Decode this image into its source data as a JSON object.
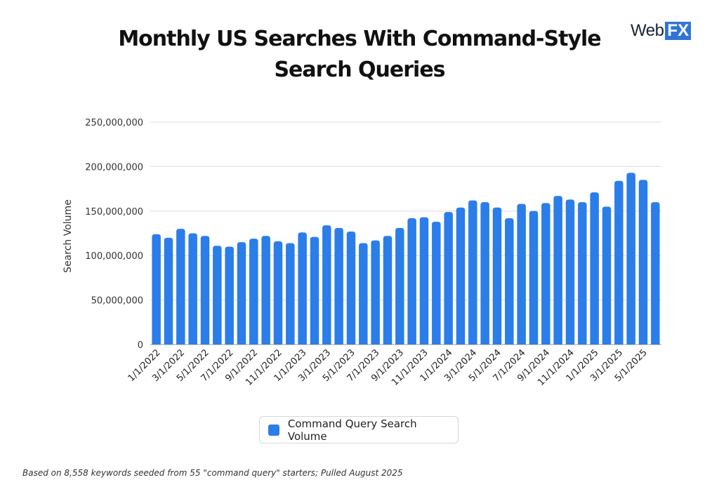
{
  "title_line1": "Monthly US Searches With Command-Style",
  "title_line2": "Search Queries",
  "logo": {
    "text_web": "Web",
    "text_fx": "FX"
  },
  "footnote": "Based on 8,558 keywords seeded from 55 \"command query\" starters; Pulled August 2025",
  "colors": {
    "bar": "#2b7de9",
    "grid": "#dcdcdc",
    "axis": "#555555"
  },
  "chart_data": {
    "type": "bar",
    "title": "Monthly US Searches With Command-Style Search Queries",
    "xlabel": "",
    "ylabel": "Search Volume",
    "ylim": [
      0,
      250000000
    ],
    "yticks": [
      0,
      50000000,
      100000000,
      150000000,
      200000000,
      250000000
    ],
    "ytick_labels": [
      "0",
      "50,000,000",
      "100,000,000",
      "150,000,000",
      "200,000,000",
      "250,000,000"
    ],
    "grid": true,
    "legend": "bottom-center",
    "categories": [
      "1/1/2022",
      "2/1/2022",
      "3/1/2022",
      "4/1/2022",
      "5/1/2022",
      "6/1/2022",
      "7/1/2022",
      "8/1/2022",
      "9/1/2022",
      "10/1/2022",
      "11/1/2022",
      "12/1/2022",
      "1/1/2023",
      "2/1/2023",
      "3/1/2023",
      "4/1/2023",
      "5/1/2023",
      "6/1/2023",
      "7/1/2023",
      "8/1/2023",
      "9/1/2023",
      "10/1/2023",
      "11/1/2023",
      "12/1/2023",
      "1/1/2024",
      "2/1/2024",
      "3/1/2024",
      "4/1/2024",
      "5/1/2024",
      "6/1/2024",
      "7/1/2024",
      "8/1/2024",
      "9/1/2024",
      "10/1/2024",
      "11/1/2024",
      "12/1/2024",
      "1/1/2025",
      "2/1/2025",
      "3/1/2025",
      "4/1/2025",
      "5/1/2025",
      "6/1/2025"
    ],
    "tick_labels_shown": [
      "1/1/2022",
      "3/1/2022",
      "5/1/2022",
      "7/1/2022",
      "9/1/2022",
      "11/1/2022",
      "1/1/2023",
      "3/1/2023",
      "5/1/2023",
      "7/1/2023",
      "9/1/2023",
      "11/1/2023",
      "1/1/2024",
      "3/1/2024",
      "5/1/2024",
      "7/1/2024",
      "9/1/2024",
      "11/1/2024",
      "1/1/2025",
      "3/1/2025",
      "5/1/2025"
    ],
    "series": [
      {
        "name": "Command Query Search Volume",
        "values": [
          124000000,
          120000000,
          130000000,
          125000000,
          122000000,
          111000000,
          110000000,
          115000000,
          119000000,
          122000000,
          116000000,
          114000000,
          126000000,
          121000000,
          134000000,
          131000000,
          127000000,
          114000000,
          117000000,
          122000000,
          131000000,
          142000000,
          143000000,
          138000000,
          149000000,
          154000000,
          162000000,
          160000000,
          154000000,
          142000000,
          158000000,
          150000000,
          159000000,
          167000000,
          163000000,
          160000000,
          171000000,
          155000000,
          184000000,
          193000000,
          185000000,
          160000000
        ]
      }
    ]
  }
}
